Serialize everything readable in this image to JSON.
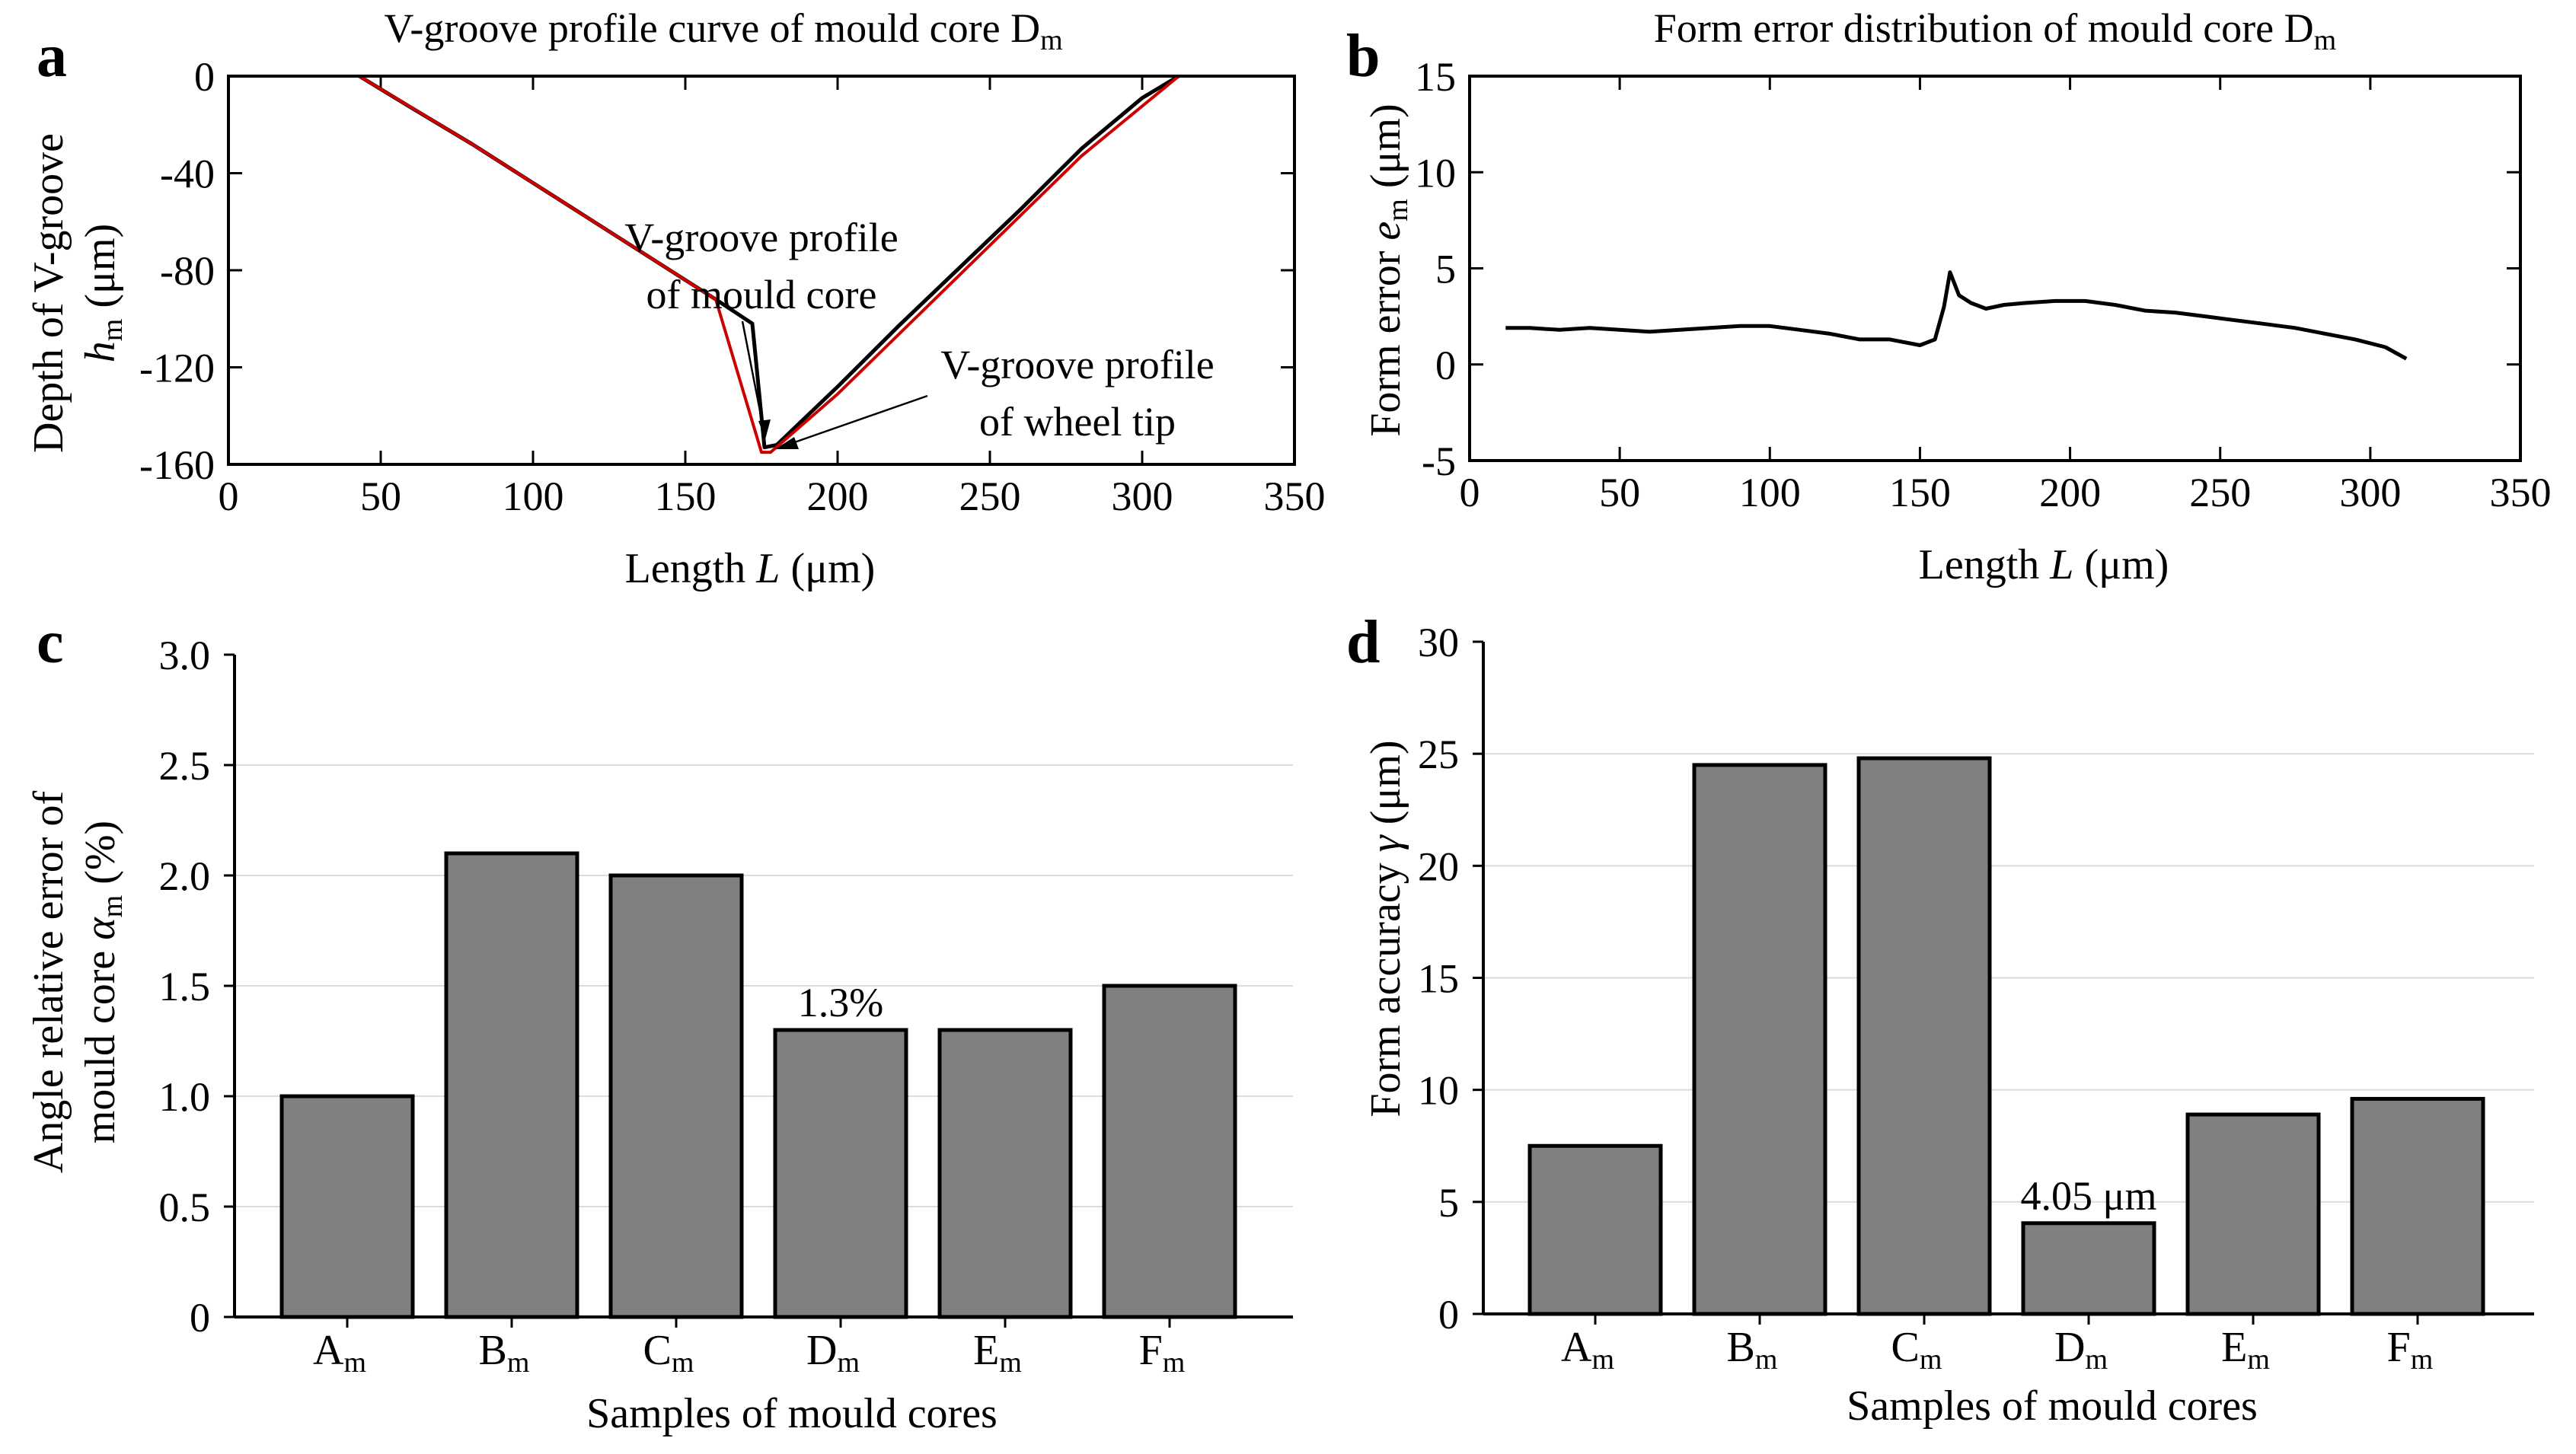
{
  "chart_data": [
    {
      "id": "a",
      "panel_label": "a",
      "type": "line",
      "title": "V-groove profile curve of mould core D",
      "title_sub": "m",
      "xlabel": "Length ",
      "xlabel_var": "L",
      "xlabel_unit": " (μm)",
      "ylabel_line1": "Depth of V-groove",
      "ylabel_var": "h",
      "ylabel_sub": "m",
      "ylabel_unit": " (μm)",
      "xlim": [
        0,
        350
      ],
      "ylim": [
        -160,
        0
      ],
      "xticks": [
        "0",
        "50",
        "100",
        "150",
        "200",
        "250",
        "300",
        "350"
      ],
      "yticks": [
        "0",
        "-40",
        "-80",
        "-120",
        "-160"
      ],
      "series": [
        {
          "name": "V-groove profile of mould core",
          "color": "#000000",
          "x": [
            43,
            60,
            80,
            100,
            120,
            140,
            160,
            172,
            176,
            180,
            200,
            220,
            240,
            260,
            280,
            300,
            312
          ],
          "y": [
            0,
            -13,
            -28,
            -44,
            -60,
            -76,
            -92,
            -102,
            -153,
            -152,
            -128,
            -103,
            -79,
            -55,
            -30,
            -9,
            0
          ]
        },
        {
          "name": "V-groove profile of wheel tip",
          "color": "#cc0000",
          "x": [
            43,
            80,
            120,
            160,
            175,
            178,
            200,
            240,
            280,
            312
          ],
          "y": [
            0,
            -28,
            -60,
            -92,
            -155,
            -155,
            -131,
            -82,
            -33,
            0
          ]
        }
      ],
      "annotations": [
        {
          "text_line1": "V-groove profile",
          "text_line2": "of mould core",
          "x": 175,
          "y": -151
        },
        {
          "text_line1": "V-groove profile",
          "text_line2": "of wheel tip",
          "x": 179,
          "y": -154
        }
      ]
    },
    {
      "id": "b",
      "panel_label": "b",
      "type": "line",
      "title": "Form error distribution of mould core D",
      "title_sub": "m",
      "xlabel": "Length ",
      "xlabel_var": "L",
      "xlabel_unit": " (μm)",
      "ylabel": "Form error ",
      "ylabel_var": "e",
      "ylabel_sub": "m",
      "ylabel_unit": " (μm)",
      "xlim": [
        0,
        350
      ],
      "ylim": [
        -5,
        15
      ],
      "xticks": [
        "0",
        "50",
        "100",
        "150",
        "200",
        "250",
        "300",
        "350"
      ],
      "yticks": [
        "-5",
        "0",
        "5",
        "10",
        "15"
      ],
      "series": [
        {
          "name": "Form error",
          "color": "#000000",
          "x": [
            12,
            20,
            30,
            40,
            50,
            60,
            70,
            80,
            90,
            100,
            110,
            120,
            130,
            140,
            150,
            155,
            158,
            160,
            163,
            167,
            172,
            178,
            185,
            195,
            205,
            215,
            225,
            235,
            245,
            255,
            265,
            275,
            285,
            295,
            305,
            312
          ],
          "y": [
            1.9,
            1.9,
            1.8,
            1.9,
            1.8,
            1.7,
            1.8,
            1.9,
            2.0,
            2.0,
            1.8,
            1.6,
            1.3,
            1.3,
            1.0,
            1.3,
            3.0,
            4.8,
            3.6,
            3.2,
            2.9,
            3.1,
            3.2,
            3.3,
            3.3,
            3.1,
            2.8,
            2.7,
            2.5,
            2.3,
            2.1,
            1.9,
            1.6,
            1.3,
            0.9,
            0.3
          ]
        }
      ]
    },
    {
      "id": "c",
      "panel_label": "c",
      "type": "bar",
      "xlabel": "Samples of mould cores",
      "ylabel_line1": "Angle relative error of",
      "ylabel_line2_pre": "mould core ",
      "ylabel_var": "α",
      "ylabel_sub": "m",
      "ylabel_unit": " (%)",
      "categories": [
        "A",
        "B",
        "C",
        "D",
        "E",
        "F"
      ],
      "category_sub": "m",
      "values": [
        1.0,
        2.1,
        2.0,
        1.3,
        1.3,
        1.5
      ],
      "ylim": [
        0,
        3.0
      ],
      "yticks": [
        "0",
        "0.5",
        "1.0",
        "1.5",
        "2.0",
        "2.5",
        "3.0"
      ],
      "bar_color": "#808080",
      "annotation": {
        "text": "1.3%",
        "category": "D"
      }
    },
    {
      "id": "d",
      "panel_label": "d",
      "type": "bar",
      "xlabel": "Samples of mould cores",
      "ylabel": "Form accuracy ",
      "ylabel_var": "γ",
      "ylabel_unit": " (μm)",
      "categories": [
        "A",
        "B",
        "C",
        "D",
        "E",
        "F"
      ],
      "category_sub": "m",
      "values": [
        7.5,
        24.5,
        24.8,
        4.05,
        8.9,
        9.6
      ],
      "ylim": [
        0,
        30
      ],
      "yticks": [
        "0",
        "5",
        "10",
        "15",
        "20",
        "25",
        "30"
      ],
      "bar_color": "#808080",
      "annotation": {
        "text": "4.05 μm",
        "category": "D"
      }
    }
  ]
}
